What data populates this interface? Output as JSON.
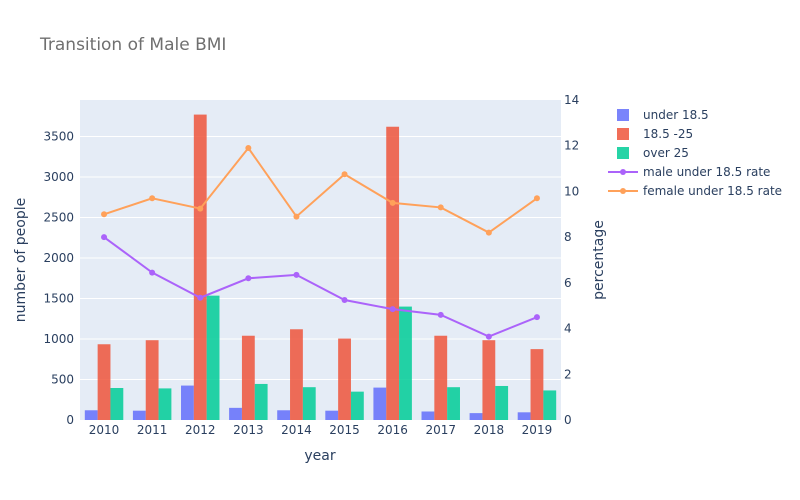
{
  "chart_data": {
    "type": "bar",
    "title": "Transition of Male BMI",
    "xlabel": "year",
    "ylabel": "number of people",
    "y2label": "percentage",
    "categories": [
      "2010",
      "2011",
      "2012",
      "2013",
      "2014",
      "2015",
      "2016",
      "2017",
      "2018",
      "2019"
    ],
    "ylim": [
      0,
      3950
    ],
    "yticks": [
      0,
      500,
      1000,
      1500,
      2000,
      2500,
      3000,
      3500
    ],
    "y2lim": [
      0,
      14
    ],
    "y2ticks": [
      0,
      2,
      4,
      6,
      8,
      10,
      12,
      14
    ],
    "series": [
      {
        "name": "under 18.5",
        "kind": "bar",
        "color": "#636efa",
        "values": [
          120,
          115,
          425,
          150,
          120,
          115,
          400,
          105,
          85,
          95
        ]
      },
      {
        "name": "18.5 -25",
        "kind": "bar",
        "color": "#ef553b",
        "values": [
          935,
          985,
          3770,
          1040,
          1120,
          1005,
          3620,
          1040,
          985,
          875
        ]
      },
      {
        "name": "over 25",
        "kind": "bar",
        "color": "#00cc96",
        "values": [
          395,
          390,
          1535,
          445,
          405,
          350,
          1400,
          405,
          420,
          365
        ]
      },
      {
        "name": "male under 18.5 rate",
        "kind": "line",
        "axis": "y2",
        "color": "#ab63fa",
        "values": [
          8.0,
          6.45,
          5.35,
          6.2,
          6.35,
          5.25,
          4.85,
          4.6,
          3.65,
          4.5
        ]
      },
      {
        "name": "female under 18.5 rate",
        "kind": "line",
        "axis": "y2",
        "color": "#ffa15a",
        "values": [
          9.0,
          9.7,
          9.25,
          11.9,
          8.9,
          10.75,
          9.5,
          9.3,
          8.2,
          9.7
        ]
      }
    ],
    "legend_position": "right"
  }
}
